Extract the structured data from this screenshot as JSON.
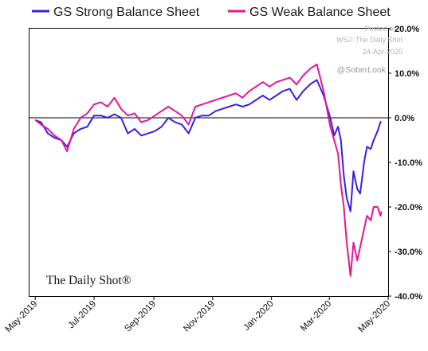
{
  "chart_data": {
    "type": "line",
    "series": [
      {
        "name": "GS Strong Balance Sheet",
        "color": "#3a1ee6",
        "points": [
          [
            "2019-05-01",
            -0.5
          ],
          [
            "2019-05-07",
            -1.0
          ],
          [
            "2019-05-14",
            -3.5
          ],
          [
            "2019-05-21",
            -4.5
          ],
          [
            "2019-05-28",
            -5.0
          ],
          [
            "2019-06-03",
            -6.5
          ],
          [
            "2019-06-10",
            -3.5
          ],
          [
            "2019-06-17",
            -2.5
          ],
          [
            "2019-06-24",
            -2.0
          ],
          [
            "2019-07-01",
            0.5
          ],
          [
            "2019-07-08",
            0.5
          ],
          [
            "2019-07-15",
            0.0
          ],
          [
            "2019-07-22",
            0.8
          ],
          [
            "2019-07-29",
            0.0
          ],
          [
            "2019-08-05",
            -3.5
          ],
          [
            "2019-08-12",
            -2.5
          ],
          [
            "2019-08-19",
            -4.0
          ],
          [
            "2019-08-26",
            -3.5
          ],
          [
            "2019-09-02",
            -3.0
          ],
          [
            "2019-09-09",
            -2.0
          ],
          [
            "2019-09-16",
            0.0
          ],
          [
            "2019-09-23",
            -1.0
          ],
          [
            "2019-09-30",
            -1.5
          ],
          [
            "2019-10-07",
            -3.5
          ],
          [
            "2019-10-14",
            0.0
          ],
          [
            "2019-10-21",
            0.5
          ],
          [
            "2019-10-28",
            0.5
          ],
          [
            "2019-11-04",
            1.5
          ],
          [
            "2019-11-11",
            2.0
          ],
          [
            "2019-11-18",
            2.5
          ],
          [
            "2019-11-25",
            3.0
          ],
          [
            "2019-12-02",
            2.5
          ],
          [
            "2019-12-09",
            3.0
          ],
          [
            "2019-12-16",
            4.0
          ],
          [
            "2019-12-23",
            5.0
          ],
          [
            "2019-12-30",
            4.0
          ],
          [
            "2020-01-06",
            5.0
          ],
          [
            "2020-01-13",
            6.0
          ],
          [
            "2020-01-20",
            6.5
          ],
          [
            "2020-01-27",
            4.0
          ],
          [
            "2020-02-03",
            6.0
          ],
          [
            "2020-02-10",
            7.5
          ],
          [
            "2020-02-17",
            8.5
          ],
          [
            "2020-02-24",
            5.0
          ],
          [
            "2020-03-02",
            0.0
          ],
          [
            "2020-03-06",
            -4.0
          ],
          [
            "2020-03-10",
            -2.0
          ],
          [
            "2020-03-13",
            -5.0
          ],
          [
            "2020-03-16",
            -13.0
          ],
          [
            "2020-03-19",
            -18.0
          ],
          [
            "2020-03-23",
            -21.0
          ],
          [
            "2020-03-26",
            -12.0
          ],
          [
            "2020-03-30",
            -16.0
          ],
          [
            "2020-04-02",
            -17.0
          ],
          [
            "2020-04-06",
            -10.0
          ],
          [
            "2020-04-09",
            -6.5
          ],
          [
            "2020-04-13",
            -7.0
          ],
          [
            "2020-04-16",
            -5.0
          ],
          [
            "2020-04-20",
            -3.0
          ],
          [
            "2020-04-23",
            -1.0
          ],
          [
            "2020-04-24",
            -0.8
          ]
        ]
      },
      {
        "name": "GS Weak Balance Sheet",
        "color": "#e3159a",
        "points": [
          [
            "2019-05-01",
            -0.5
          ],
          [
            "2019-05-07",
            -1.5
          ],
          [
            "2019-05-14",
            -2.5
          ],
          [
            "2019-05-21",
            -4.0
          ],
          [
            "2019-05-28",
            -5.0
          ],
          [
            "2019-06-03",
            -7.5
          ],
          [
            "2019-06-10",
            -2.5
          ],
          [
            "2019-06-17",
            0.0
          ],
          [
            "2019-06-24",
            1.0
          ],
          [
            "2019-07-01",
            3.0
          ],
          [
            "2019-07-08",
            3.5
          ],
          [
            "2019-07-15",
            2.5
          ],
          [
            "2019-07-22",
            4.5
          ],
          [
            "2019-07-29",
            2.0
          ],
          [
            "2019-08-05",
            0.5
          ],
          [
            "2019-08-12",
            1.0
          ],
          [
            "2019-08-19",
            -1.0
          ],
          [
            "2019-08-26",
            -0.5
          ],
          [
            "2019-09-02",
            0.5
          ],
          [
            "2019-09-09",
            1.5
          ],
          [
            "2019-09-16",
            2.5
          ],
          [
            "2019-09-23",
            1.5
          ],
          [
            "2019-09-30",
            0.5
          ],
          [
            "2019-10-07",
            -1.5
          ],
          [
            "2019-10-14",
            2.5
          ],
          [
            "2019-10-21",
            3.0
          ],
          [
            "2019-10-28",
            3.5
          ],
          [
            "2019-11-04",
            4.0
          ],
          [
            "2019-11-11",
            4.5
          ],
          [
            "2019-11-18",
            5.0
          ],
          [
            "2019-11-25",
            5.5
          ],
          [
            "2019-12-02",
            4.5
          ],
          [
            "2019-12-09",
            6.0
          ],
          [
            "2019-12-16",
            7.0
          ],
          [
            "2019-12-23",
            8.0
          ],
          [
            "2019-12-30",
            7.0
          ],
          [
            "2020-01-06",
            8.0
          ],
          [
            "2020-01-13",
            8.5
          ],
          [
            "2020-01-20",
            9.0
          ],
          [
            "2020-01-27",
            7.5
          ],
          [
            "2020-02-03",
            9.5
          ],
          [
            "2020-02-10",
            11.0
          ],
          [
            "2020-02-17",
            12.0
          ],
          [
            "2020-02-24",
            6.0
          ],
          [
            "2020-03-02",
            -2.0
          ],
          [
            "2020-03-06",
            -5.0
          ],
          [
            "2020-03-10",
            -8.0
          ],
          [
            "2020-03-13",
            -15.0
          ],
          [
            "2020-03-16",
            -20.0
          ],
          [
            "2020-03-19",
            -28.0
          ],
          [
            "2020-03-23",
            -35.5
          ],
          [
            "2020-03-26",
            -28.0
          ],
          [
            "2020-03-30",
            -32.0
          ],
          [
            "2020-04-02",
            -29.0
          ],
          [
            "2020-04-06",
            -25.0
          ],
          [
            "2020-04-09",
            -22.0
          ],
          [
            "2020-04-13",
            -23.0
          ],
          [
            "2020-04-16",
            -20.0
          ],
          [
            "2020-04-20",
            -20.0
          ],
          [
            "2020-04-23",
            -22.0
          ],
          [
            "2020-04-24",
            -21.0
          ]
        ]
      }
    ],
    "x_axis": {
      "type": "date",
      "range": [
        "2019-04-25",
        "2020-05-01"
      ],
      "ticks": [
        {
          "date": "2019-05-01",
          "label": "May-2019"
        },
        {
          "date": "2019-07-01",
          "label": "Jul-2019"
        },
        {
          "date": "2019-09-01",
          "label": "Sep-2019"
        },
        {
          "date": "2019-11-01",
          "label": "Nov-2019"
        },
        {
          "date": "2020-01-01",
          "label": "Jan-2020"
        },
        {
          "date": "2020-03-01",
          "label": "Mar-2020"
        },
        {
          "date": "2020-05-01",
          "label": "May-2020"
        }
      ]
    },
    "y_axis": {
      "range": [
        -40,
        20
      ],
      "position": "right",
      "ticks": [
        {
          "value": 20,
          "label": "20.0%"
        },
        {
          "value": 10,
          "label": "10.0%"
        },
        {
          "value": 0,
          "label": "0.0%"
        },
        {
          "value": -10,
          "label": "-10.0%"
        },
        {
          "value": -20,
          "label": "-20.0%"
        },
        {
          "value": -30,
          "label": "-30.0%"
        },
        {
          "value": -40,
          "label": "-40.0%"
        }
      ]
    },
    "zero_line": true,
    "grid": false,
    "legend_position": "top"
  },
  "watermark": {
    "line1": "Posted on",
    "line2": "WSJ: The Daily Shot",
    "line3": "24-Apr-2020",
    "handle": "@SoberLook"
  },
  "logo_text": "The Daily Shot®"
}
